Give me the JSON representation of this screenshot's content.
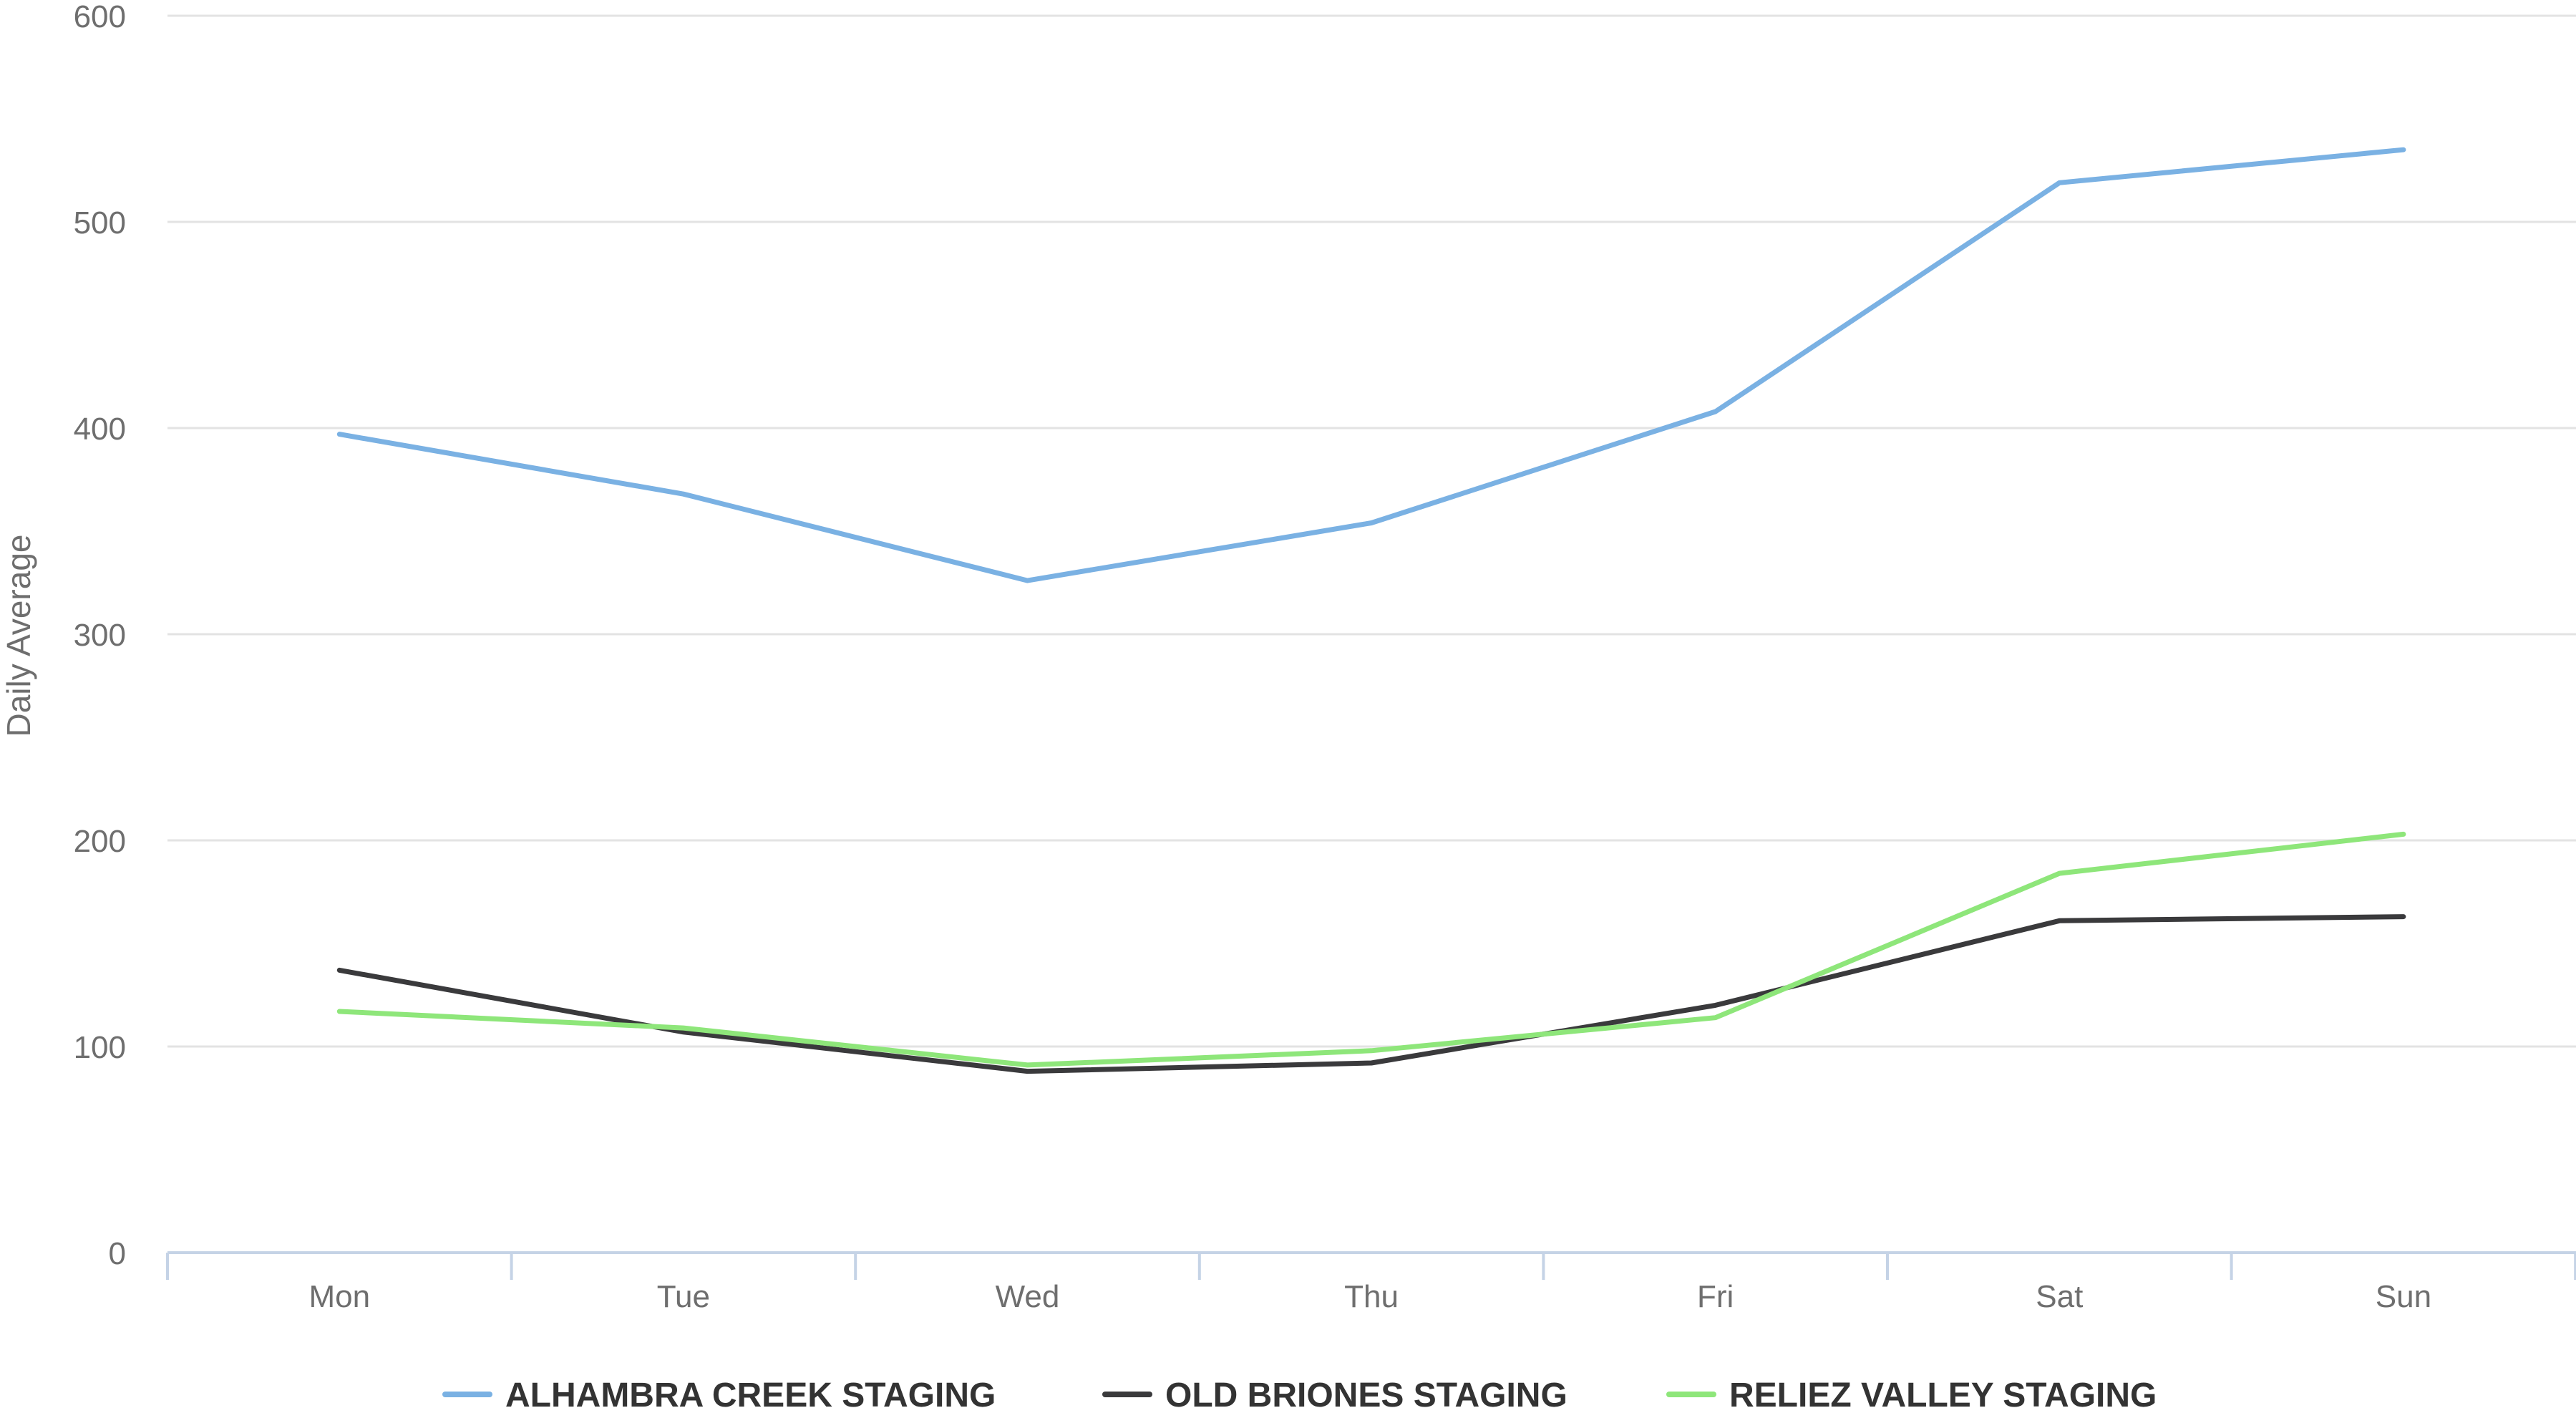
{
  "chart_data": {
    "type": "line",
    "title": "",
    "xlabel": "",
    "ylabel": "Daily Average",
    "categories": [
      "Mon",
      "Tue",
      "Wed",
      "Thu",
      "Fri",
      "Sat",
      "Sun"
    ],
    "ylim": [
      0,
      600
    ],
    "yticks": [
      "0",
      "100",
      "200",
      "300",
      "400",
      "500",
      "600"
    ],
    "grid": true,
    "legend_position": "bottom",
    "series": [
      {
        "name": "ALHAMBRA CREEK STAGING",
        "color": "#7ab1e3",
        "values": [
          397,
          368,
          326,
          354,
          408,
          519,
          535
        ]
      },
      {
        "name": "OLD BRIONES STAGING",
        "color": "#3a3a3c",
        "values": [
          137,
          107,
          88,
          92,
          120,
          161,
          163
        ]
      },
      {
        "name": "RELIEZ VALLEY STAGING",
        "color": "#8ee67a",
        "values": [
          117,
          109,
          91,
          98,
          114,
          184,
          203
        ]
      }
    ]
  }
}
